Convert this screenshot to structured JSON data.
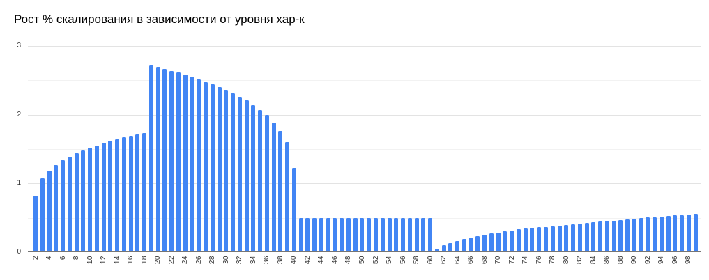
{
  "title": "Рост % скалирования в зависимости от уровня хар-к",
  "colors": {
    "background": "#ffffff",
    "bar": "#4285f4",
    "grid_major": "#e3e3e3",
    "grid_minor": "#f2f2f2",
    "baseline": "#757575",
    "tick_text": "#333333",
    "title_text": "#000000"
  },
  "y_axis": {
    "tick_labels": [
      "0",
      "1",
      "2",
      "3"
    ]
  },
  "chart_data": {
    "type": "bar",
    "title": "Рост % скалирования в зависимости от уровня хар-к",
    "xlabel": "",
    "ylabel": "",
    "ylim": [
      0,
      3
    ],
    "y_major_ticks": [
      0,
      1,
      2,
      3
    ],
    "y_minor_ticks": [
      0.5,
      1.5,
      2.5
    ],
    "grid": true,
    "legend": "none",
    "bar_color": "#4285f4",
    "x": [
      2,
      3,
      4,
      5,
      6,
      7,
      8,
      9,
      10,
      11,
      12,
      13,
      14,
      15,
      16,
      17,
      18,
      19,
      20,
      21,
      22,
      23,
      24,
      25,
      26,
      27,
      28,
      29,
      30,
      31,
      32,
      33,
      34,
      35,
      36,
      37,
      38,
      39,
      40,
      41,
      42,
      43,
      44,
      45,
      46,
      47,
      48,
      49,
      50,
      51,
      52,
      53,
      54,
      55,
      56,
      57,
      58,
      59,
      60,
      61,
      62,
      63,
      64,
      65,
      66,
      67,
      68,
      69,
      70,
      71,
      72,
      73,
      74,
      75,
      76,
      77,
      78,
      79,
      80,
      81,
      82,
      83,
      84,
      85,
      86,
      87,
      88,
      89,
      90,
      91,
      92,
      93,
      94,
      95,
      96,
      97,
      98,
      99
    ],
    "values": [
      0.82,
      1.07,
      1.19,
      1.27,
      1.34,
      1.39,
      1.44,
      1.48,
      1.52,
      1.55,
      1.59,
      1.62,
      1.64,
      1.67,
      1.69,
      1.71,
      1.73,
      2.72,
      2.7,
      2.67,
      2.64,
      2.61,
      2.58,
      2.55,
      2.51,
      2.47,
      2.44,
      2.4,
      2.36,
      2.31,
      2.26,
      2.21,
      2.14,
      2.07,
      2.0,
      1.89,
      1.76,
      1.6,
      1.23,
      0.5,
      0.5,
      0.5,
      0.5,
      0.5,
      0.5,
      0.5,
      0.5,
      0.5,
      0.5,
      0.5,
      0.5,
      0.5,
      0.5,
      0.5,
      0.5,
      0.5,
      0.5,
      0.5,
      0.5,
      0.05,
      0.1,
      0.13,
      0.16,
      0.19,
      0.21,
      0.23,
      0.25,
      0.27,
      0.28,
      0.3,
      0.31,
      0.33,
      0.34,
      0.35,
      0.36,
      0.37,
      0.38,
      0.39,
      0.4,
      0.41,
      0.42,
      0.43,
      0.44,
      0.45,
      0.46,
      0.46,
      0.47,
      0.48,
      0.49,
      0.5,
      0.51,
      0.51,
      0.52,
      0.53,
      0.54,
      0.54,
      0.55,
      0.56
    ],
    "x_tick_labels": [
      "2",
      "4",
      "6",
      "8",
      "10",
      "12",
      "14",
      "16",
      "18",
      "20",
      "22",
      "24",
      "26",
      "28",
      "30",
      "32",
      "34",
      "36",
      "38",
      "40",
      "42",
      "44",
      "46",
      "48",
      "50",
      "52",
      "54",
      "56",
      "58",
      "60",
      "62",
      "64",
      "66",
      "68",
      "70",
      "72",
      "74",
      "76",
      "78",
      "80",
      "82",
      "84",
      "86",
      "88",
      "90",
      "92",
      "94",
      "96",
      "98"
    ]
  }
}
